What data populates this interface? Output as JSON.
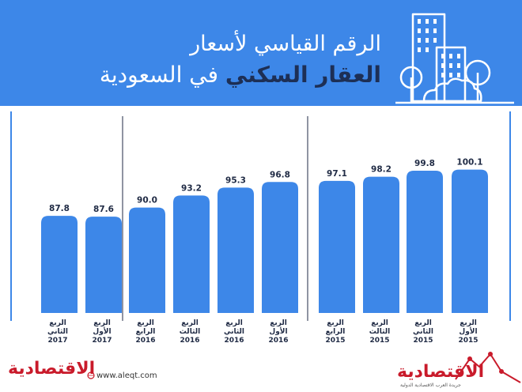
{
  "header": {
    "title_line1": "الرقم القياسي لأسعار",
    "title_line2_bold": "العقار السكني",
    "title_line2_light": "في السعودية"
  },
  "chart_data": {
    "type": "bar",
    "bar_color": "#3d87e8",
    "groups": [
      {
        "categories": [
          "الربع\nالثاني\n2017",
          "الربع\nالأول\n2017"
        ],
        "values": [
          87.8,
          87.6
        ]
      },
      {
        "categories": [
          "الربع\nالرابع\n2016",
          "الربع\nالثالث\n2016",
          "الربع\nالثاني\n2016",
          "الربع\nالأول\n2016"
        ],
        "values": [
          90.0,
          93.2,
          95.3,
          96.8
        ]
      },
      {
        "categories": [
          "الربع\nالرابع\n2015",
          "الربع\nالثالث\n2015",
          "الربع\nالثاني\n2015",
          "الربع\nالأول\n2015"
        ],
        "values": [
          97.1,
          98.2,
          99.8,
          100.1
        ]
      }
    ],
    "value_labels": [
      "87.8",
      "87.6",
      "90.0",
      "93.2",
      "95.3",
      "96.8",
      "97.1",
      "98.2",
      "99.8",
      "100.1"
    ]
  },
  "footer": {
    "logo_text": "الاقتصادية",
    "website": "www.aleqt.com",
    "logo_subtitle": "جريدة العرب الاقتصادية الدولية"
  }
}
